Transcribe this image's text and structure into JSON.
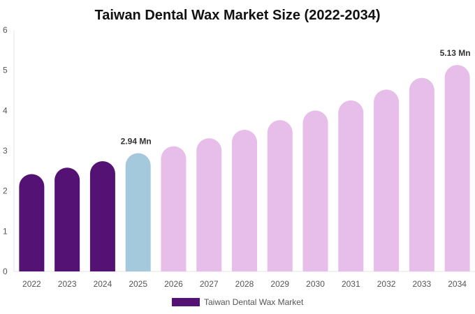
{
  "chart_data": {
    "type": "bar",
    "title": "Taiwan Dental Wax Market Size (2022-2034)",
    "xlabel": "",
    "ylabel": "",
    "ylim": [
      0,
      6
    ],
    "yticks": [
      0,
      1,
      2,
      3,
      4,
      5,
      6
    ],
    "categories": [
      "2022",
      "2023",
      "2024",
      "2025",
      "2026",
      "2027",
      "2028",
      "2029",
      "2030",
      "2031",
      "2032",
      "2033",
      "2034"
    ],
    "series": [
      {
        "name": "Taiwan Dental Wax Market",
        "values": [
          2.42,
          2.58,
          2.74,
          2.94,
          3.11,
          3.31,
          3.52,
          3.76,
          4.0,
          4.25,
          4.52,
          4.81,
          5.13
        ]
      }
    ],
    "bar_colors": [
      "#531274",
      "#531274",
      "#531274",
      "#a4c9dc",
      "#e7bde9",
      "#e7bde9",
      "#e7bde9",
      "#e7bde9",
      "#e7bde9",
      "#e7bde9",
      "#e7bde9",
      "#e7bde9",
      "#e7bde9"
    ],
    "data_labels": [
      {
        "index": 3,
        "text": "2.94 Mn"
      },
      {
        "index": 12,
        "text": "5.13 Mn"
      }
    ],
    "legend": {
      "label": "Taiwan Dental Wax Market",
      "color": "#531274",
      "position": "bottom-center"
    },
    "grid": false
  }
}
